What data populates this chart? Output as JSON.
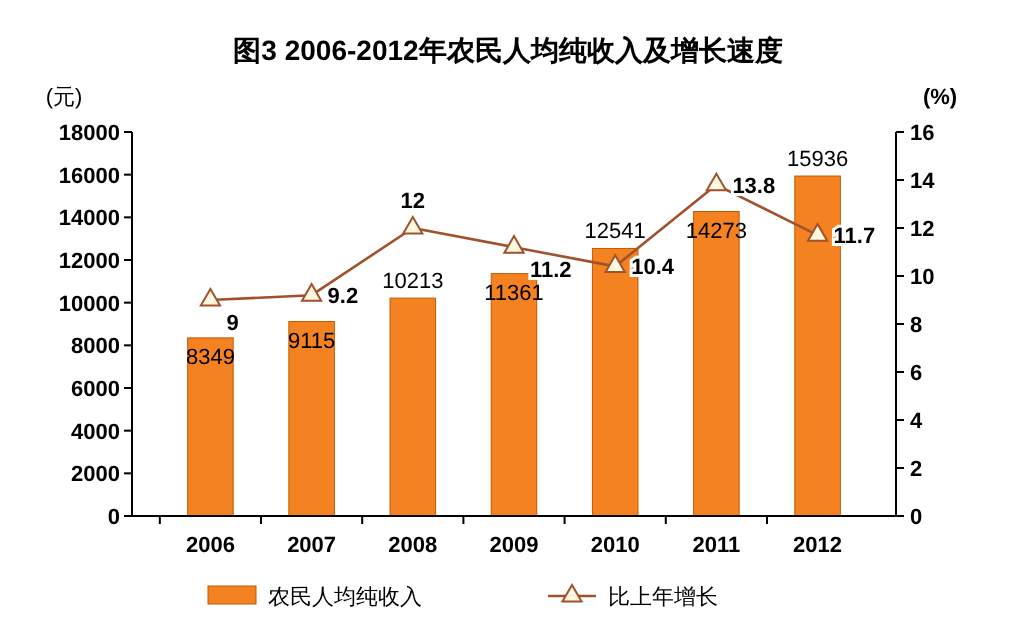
{
  "chart_data": {
    "type": "bar",
    "title": "图3  2006-2012年农民人均纯收入及增长速度",
    "ylabel": "(元)",
    "y2label": "(%)",
    "categories": [
      "2006",
      "2007",
      "2008",
      "2009",
      "2010",
      "2011",
      "2012"
    ],
    "series": [
      {
        "name": "农民人均纯收入",
        "type": "bar",
        "color": "#f58220",
        "values": [
          8349,
          9115,
          10213,
          11361,
          12541,
          14273,
          15936
        ]
      },
      {
        "name": "比上年增长",
        "type": "line",
        "axis": "y2",
        "color": "#a0522d",
        "values": [
          9,
          9.2,
          12,
          11.2,
          10.4,
          13.8,
          11.7
        ]
      }
    ],
    "ylim": [
      0,
      18000
    ],
    "yticks": [
      0,
      2000,
      4000,
      6000,
      8000,
      10000,
      12000,
      14000,
      16000,
      18000
    ],
    "y2lim": [
      0,
      16
    ],
    "y2ticks": [
      0,
      2,
      4,
      6,
      8,
      10,
      12,
      14,
      16
    ],
    "data_labels": true,
    "marker": "triangle",
    "legend": "bottom",
    "grid": false
  }
}
